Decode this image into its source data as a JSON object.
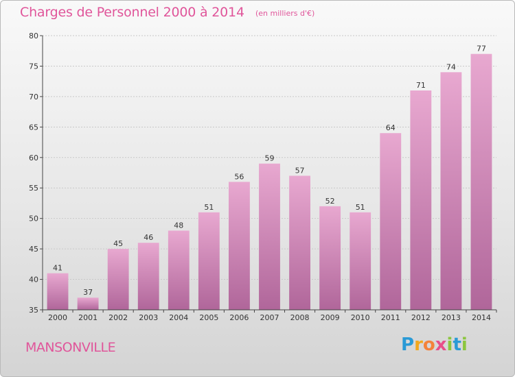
{
  "header": {
    "title": "Charges de Personnel 2000 à 2014",
    "subtitle": "(en milliers d'€)"
  },
  "footer": {
    "place": "MANSONVILLE",
    "logo_letters": [
      "P",
      "r",
      "o",
      "x",
      "i",
      "t",
      "i"
    ],
    "logo_colors": [
      "#2a9ad6",
      "#f2a81d",
      "#f4823a",
      "#e84e8a",
      "#8cc63f",
      "#2a9ad6",
      "#8cc63f"
    ]
  },
  "colors": {
    "bar_top": "#e8a8d0",
    "bar_bottom": "#b0669a",
    "title": "#e0559a",
    "axis": "#444444"
  },
  "chart_data": {
    "type": "bar",
    "categories": [
      "2000",
      "2001",
      "2002",
      "2003",
      "2004",
      "2005",
      "2006",
      "2007",
      "2008",
      "2009",
      "2010",
      "2011",
      "2012",
      "2013",
      "2014"
    ],
    "values": [
      41,
      37,
      45,
      46,
      48,
      51,
      56,
      59,
      57,
      52,
      51,
      64,
      71,
      74,
      77
    ],
    "title": "Charges de Personnel 2000 à 2014",
    "xlabel": "",
    "ylabel": "",
    "ylim": [
      35,
      80
    ],
    "yticks": [
      35,
      40,
      45,
      50,
      55,
      60,
      65,
      70,
      75,
      80
    ],
    "grid": true
  }
}
